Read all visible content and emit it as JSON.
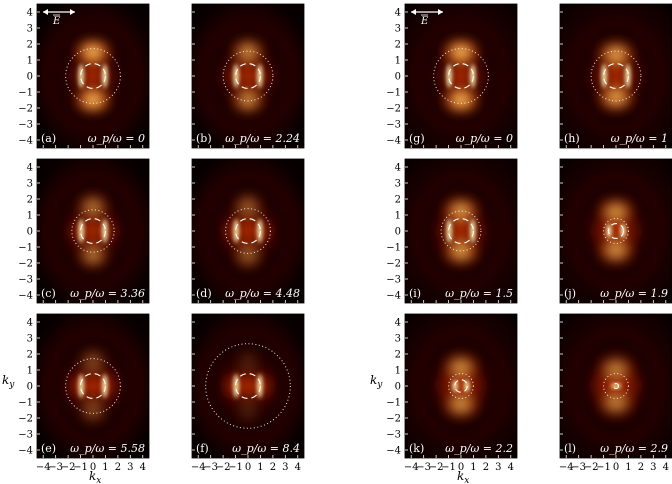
{
  "chart_data": {
    "type": "heatmap",
    "colormap": "black-red-yellow-white (hot)",
    "axes": {
      "xlabel": "k_x",
      "ylabel": "k_y",
      "xlim": [
        -4.5,
        4.5
      ],
      "ylim": [
        -4.5,
        4.5
      ],
      "xticks": [
        -4,
        -3,
        -2,
        -1,
        0,
        1,
        2,
        3,
        4
      ],
      "yticks": [
        4,
        3,
        2,
        1,
        0,
        -1,
        -2,
        -3,
        -4
      ]
    },
    "field_label": "E",
    "field_label_panels": [
      "a",
      "g"
    ],
    "panels": [
      {
        "label": "(a)",
        "ratio_text": "ω_p/ω = 0",
        "ratio": 0,
        "outer_circle_radius": 2.2,
        "inner_circle_radius": 1.0
      },
      {
        "label": "(b)",
        "ratio_text": "ω_p/ω = 2.24",
        "ratio": 2.24,
        "outer_circle_radius": 2.0,
        "inner_circle_radius": 1.0
      },
      {
        "label": "(c)",
        "ratio_text": "ω_p/ω = 3.36",
        "ratio": 3.36,
        "outer_circle_radius": 1.7,
        "inner_circle_radius": 1.0
      },
      {
        "label": "(d)",
        "ratio_text": "ω_p/ω = 4.48",
        "ratio": 4.48,
        "outer_circle_radius": 1.8,
        "inner_circle_radius": 1.0
      },
      {
        "label": "(e)",
        "ratio_text": "ω_p/ω = 5.58",
        "ratio": 5.58,
        "outer_circle_radius": 2.2,
        "inner_circle_radius": 1.0
      },
      {
        "label": "(f)",
        "ratio_text": "ω_p/ω = 8.4",
        "ratio": 8.4,
        "outer_circle_radius": 3.4,
        "inner_circle_radius": 1.0
      },
      {
        "label": "(g)",
        "ratio_text": "ω_p/ω = 0",
        "ratio": 0,
        "outer_circle_radius": 2.2,
        "inner_circle_radius": 1.0
      },
      {
        "label": "(h)",
        "ratio_text": "ω_p/ω = 1",
        "ratio": 1,
        "outer_circle_radius": 2.0,
        "inner_circle_radius": 1.0
      },
      {
        "label": "(i)",
        "ratio_text": "ω_p/ω = 1.5",
        "ratio": 1.5,
        "outer_circle_radius": 1.6,
        "inner_circle_radius": 1.0
      },
      {
        "label": "(j)",
        "ratio_text": "ω_p/ω = 1.9",
        "ratio": 1.9,
        "outer_circle_radius": 1.0,
        "inner_circle_radius": 0.6
      },
      {
        "label": "(k)",
        "ratio_text": "ω_p/ω = 2.2",
        "ratio": 2.2,
        "outer_circle_radius": 1.0,
        "inner_circle_radius": 0.5
      },
      {
        "label": "(l)",
        "ratio_text": "ω_p/ω = 2.9",
        "ratio": 2.9,
        "outer_circle_radius": 1.0,
        "inner_circle_radius": 0.2
      }
    ]
  }
}
